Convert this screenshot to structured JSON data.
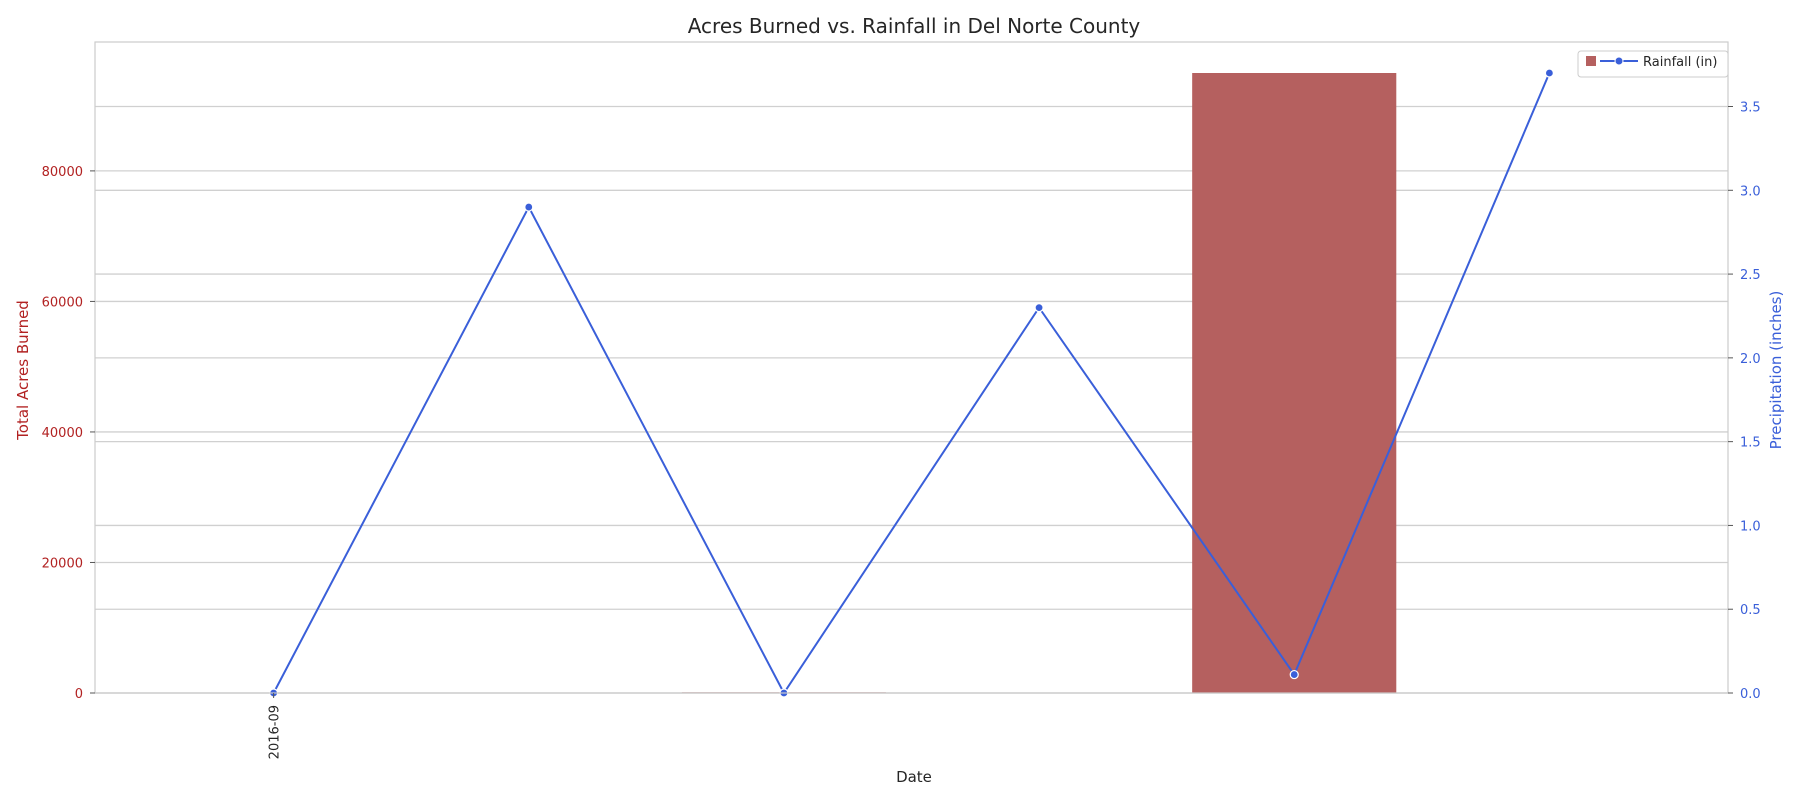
{
  "chart_data": {
    "type": "bar+line",
    "title": "Acres Burned vs. Rainfall in Del Norte County",
    "xlabel": "Date",
    "ylabel_left": "Total Acres Burned",
    "ylabel_right": "Precipitation (inches)",
    "x_tick_labels_shown": [
      "2016-09"
    ],
    "x_positions": 6,
    "bars": {
      "values": [
        0,
        0,
        100,
        0,
        95000,
        0
      ],
      "color": "#b5605f"
    },
    "line": {
      "name": "Rainfall (in)",
      "values": [
        0.0,
        2.9,
        0.0,
        2.3,
        0.11,
        3.7
      ],
      "color": "#3a5fd9"
    },
    "ylim_left": [
      0,
      99750
    ],
    "yticks_left": [
      0,
      20000,
      40000,
      60000,
      80000
    ],
    "ylim_right": [
      0,
      3.885
    ],
    "yticks_right": [
      "0.0",
      "0.5",
      "1.0",
      "1.5",
      "2.0",
      "2.5",
      "3.0",
      "3.5"
    ],
    "grid": true,
    "legend_position": "top-right",
    "colors": {
      "left_axis": "#b22222",
      "right_axis": "#3a5fd9",
      "grid": "#d0d0d0",
      "frame": "#cccccc"
    }
  }
}
